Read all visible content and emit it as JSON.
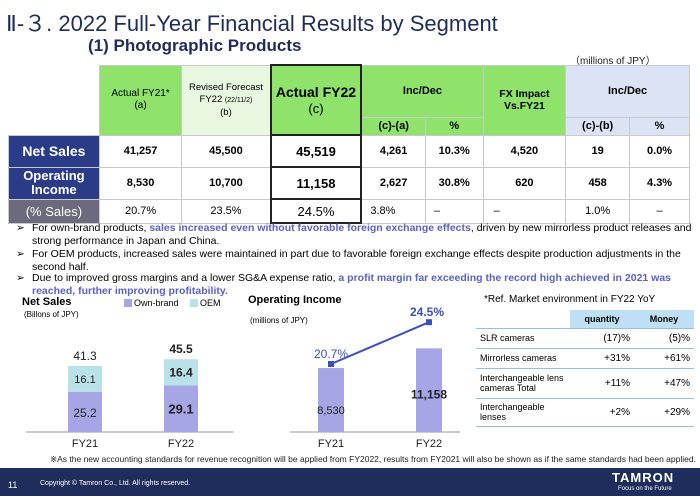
{
  "header": {
    "title": "Ⅱ-３. 2022 Full-Year Financial Results by Segment",
    "subtitle": "(1) Photographic Products",
    "units": "（millions of JPY）"
  },
  "table": {
    "col_actual21": "Actual FY21*",
    "col_actual21_tag": "(a)",
    "col_forecast": "Revised Forecast",
    "col_forecast_sub": "FY22",
    "col_forecast_date": "(22/11/2)",
    "col_forecast_tag": "(b)",
    "col_actual22": "Actual FY22",
    "col_actual22_tag": "(c)",
    "col_incdec1": "Inc/Dec",
    "col_incdec1_a": "(c)-(a)",
    "col_incdec1_b": "%",
    "col_fx": "FX Impact Vs.FY21",
    "col_incdec2": "Inc/Dec",
    "col_incdec2_a": "(c)-(b)",
    "col_incdec2_b": "%",
    "rows": [
      {
        "label": "Net Sales",
        "a": "41,257",
        "b": "45,500",
        "c": "45,519",
        "d1": "4,261",
        "p1": "10.3%",
        "fx": "4,520",
        "d2": "19",
        "p2": "0.0%"
      },
      {
        "label": "Operating Income",
        "a": "8,530",
        "b": "10,700",
        "c": "11,158",
        "d1": "2,627",
        "p1": "30.8%",
        "fx": "620",
        "d2": "458",
        "p2": "4.3%"
      },
      {
        "label": "(% Sales)",
        "a": "20.7%",
        "b": "23.5%",
        "c": "24.5%",
        "d1": "3.8%",
        "p1": "–",
        "fx": "–",
        "d2": "1.0%",
        "p2": "–"
      }
    ]
  },
  "bullets": [
    {
      "pre": "For own-brand products, ",
      "hl": "sales increased even without favorable foreign exchange effects",
      "post": ", driven by new mirrorless product releases and strong performance in Japan and China."
    },
    {
      "pre": "For OEM products, increased sales were maintained in part due to favorable foreign exchange effects despite production adjustments in the second half.",
      "hl": "",
      "post": ""
    },
    {
      "pre": "Due to improved gross margins and a lower SG&A expense ratio, ",
      "hl": "a profit margin far exceeding the record high achieved in 2021 was reached, further improving profitability.",
      "post": ""
    }
  ],
  "net_sales_chart": {
    "title": "Net Sales",
    "unit": "(Billons of JPY)",
    "legend_own": "Own-brand",
    "legend_oem": "OEM",
    "colors": {
      "own": "#a6a6e6",
      "oem": "#b9e2e8"
    },
    "chart_data": {
      "type": "bar",
      "categories": [
        "FY21",
        "FY22"
      ],
      "series": [
        {
          "name": "Own-brand",
          "values": [
            25.2,
            29.1
          ]
        },
        {
          "name": "OEM",
          "values": [
            16.1,
            16.4
          ]
        }
      ],
      "totals": [
        41.3,
        45.5
      ]
    },
    "labels": {
      "t21": "41.3",
      "t22": "45.5",
      "own21": "25.2",
      "own22": "29.1",
      "oem21": "16.1",
      "oem22": "16.4",
      "x21": "FY21",
      "x22": "FY22"
    }
  },
  "op_income_chart": {
    "title": "Operating Income",
    "unit": "(millions of JPY)",
    "colors": {
      "bar": "#a6a6e6",
      "line": "#3d4fc0"
    },
    "chart_data": {
      "type": "bar",
      "categories": [
        "FY21",
        "FY22"
      ],
      "values": [
        8530,
        11158
      ],
      "margin": [
        20.7,
        24.5
      ]
    },
    "labels": {
      "v21": "8,530",
      "v22": "11,158",
      "m21": "20.7%",
      "m22": "24.5%",
      "x21": "FY21",
      "x22": "FY22"
    }
  },
  "market": {
    "title": "*Ref. Market environment in FY22 YoY",
    "h_qty": "quantity",
    "h_money": "Money",
    "rows": [
      {
        "name": "SLR cameras",
        "qty": "(17)%",
        "money": "(5)%"
      },
      {
        "name": "Mirrorless cameras",
        "qty": "+31%",
        "money": "+61%"
      },
      {
        "name": "Interchangeable lens cameras Total",
        "qty": "+11%",
        "money": "+47%"
      },
      {
        "name": "Interchangeable lenses",
        "qty": "+2%",
        "money": "+29%"
      }
    ]
  },
  "note": "※As the new accounting standards for revenue recognition will be applied from FY2022, results from FY2021 will also be shown as if the same standards had been applied.",
  "footer": {
    "page": "11",
    "copyright": "Copyright © Tamron Co., Ltd. All rights reserved.",
    "logo": "TAMRON",
    "logo_sub": "Focus on the Future"
  }
}
